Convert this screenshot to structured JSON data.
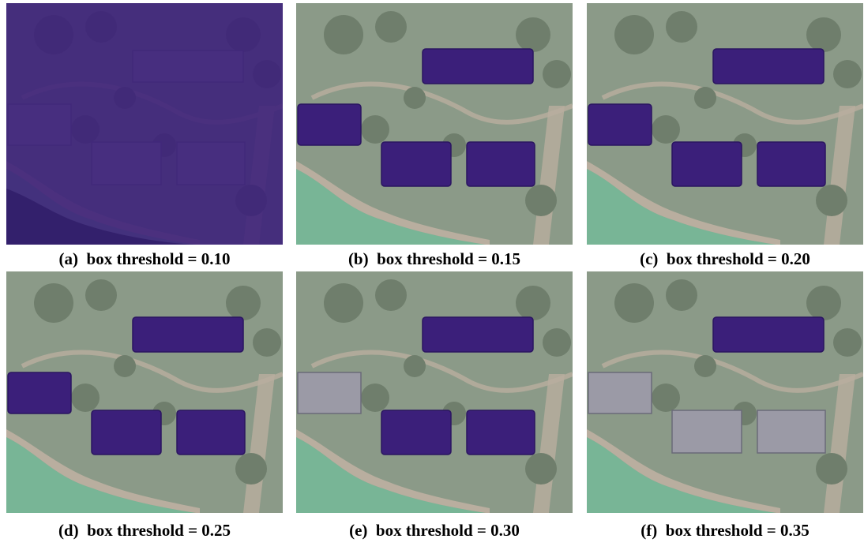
{
  "figure": {
    "panels": [
      {
        "id": "a",
        "label": "(a)",
        "caption": "box threshold = 0.10",
        "threshold": 0.1,
        "masked": [
          "all"
        ]
      },
      {
        "id": "b",
        "label": "(b)",
        "caption": "box threshold = 0.15",
        "threshold": 0.15,
        "masked": [
          "top-house",
          "left-house",
          "center-house",
          "right-house"
        ]
      },
      {
        "id": "c",
        "label": "(c)",
        "caption": "box threshold = 0.20",
        "threshold": 0.2,
        "masked": [
          "top-house",
          "left-house",
          "center-house",
          "right-house"
        ]
      },
      {
        "id": "d",
        "label": "(d)",
        "caption": "box threshold = 0.25",
        "threshold": 0.25,
        "masked": [
          "top-house",
          "left-house",
          "center-house",
          "right-house"
        ]
      },
      {
        "id": "e",
        "label": "(e)",
        "caption": "box threshold = 0.30",
        "threshold": 0.3,
        "masked": [
          "top-house",
          "center-house",
          "right-house"
        ]
      },
      {
        "id": "f",
        "label": "(f)",
        "caption": "box threshold = 0.35",
        "threshold": 0.35,
        "masked": [
          "top-house"
        ]
      }
    ],
    "colors": {
      "mask": "#3b1f7a",
      "lawn": "#8b9a88",
      "pond": "#78b596",
      "path": "#b9ae9f",
      "tree": "#6f7e6c",
      "roof": "#9b9aa6"
    }
  }
}
